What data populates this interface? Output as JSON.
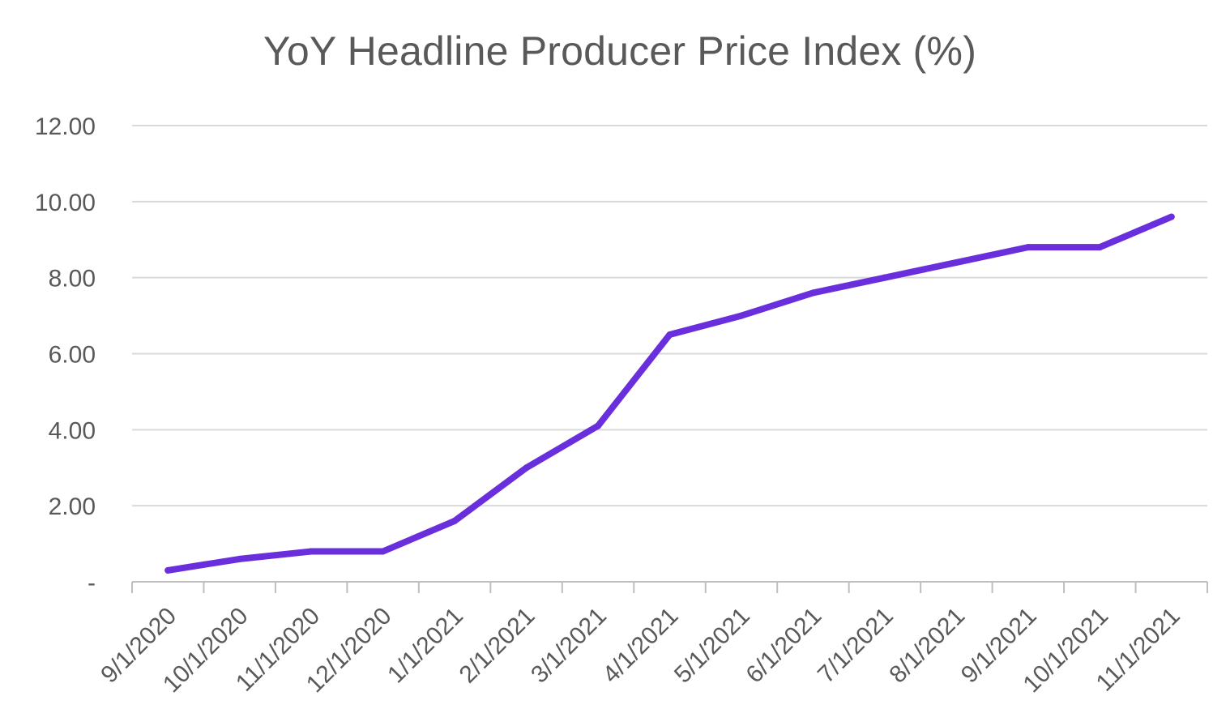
{
  "chart_data": {
    "type": "line",
    "title": "YoY Headline Producer Price Index (%)",
    "xlabel": "",
    "ylabel": "",
    "categories": [
      "9/1/2020",
      "10/1/2020",
      "11/1/2020",
      "12/1/2020",
      "1/1/2021",
      "2/1/2021",
      "3/1/2021",
      "4/1/2021",
      "5/1/2021",
      "6/1/2021",
      "7/1/2021",
      "8/1/2021",
      "9/1/2021",
      "10/1/2021",
      "11/1/2021"
    ],
    "series": [
      {
        "values": [
          0.3,
          0.6,
          0.8,
          0.8,
          1.6,
          3.0,
          4.1,
          6.5,
          7.0,
          7.6,
          8.0,
          8.4,
          8.8,
          8.8,
          9.6
        ],
        "color": "#6a2fdc"
      }
    ],
    "ylim": [
      0,
      12
    ],
    "yticks": [
      0,
      2,
      4,
      6,
      8,
      10,
      12
    ],
    "ytick_labels": [
      "-",
      "2.00",
      "4.00",
      "6.00",
      "8.00",
      "10.00",
      "12.00"
    ],
    "grid": true,
    "legend": "none",
    "colors": {
      "line": "#6a2fdc",
      "grid": "#d9d9d9",
      "axis": "#bfbfbf",
      "text": "#595959"
    }
  }
}
